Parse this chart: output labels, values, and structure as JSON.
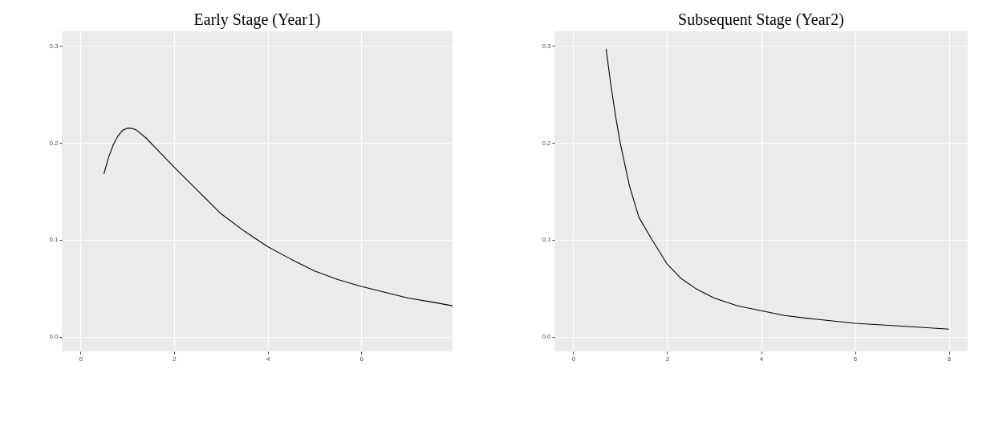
{
  "chart_data": [
    {
      "type": "line",
      "title": "Early Stage (Year1)",
      "color": "#000000",
      "grid": true,
      "xlim": [
        -0.4,
        7.95
      ],
      "xticks": [
        0,
        2,
        4,
        6
      ],
      "ylim": [
        -0.015,
        0.315
      ],
      "yticks": [
        {
          "value": 0,
          "label": "0.0"
        },
        0.1,
        0.2,
        0.3
      ],
      "x": [
        0.5,
        0.6,
        0.7,
        0.8,
        0.9,
        1.0,
        1.1,
        1.2,
        1.4,
        1.6,
        1.8,
        2.0,
        2.5,
        3.0,
        3.5,
        4.0,
        4.5,
        5.0,
        5.5,
        6.0,
        6.5,
        7.0,
        7.5,
        7.95
      ],
      "values": [
        0.168,
        0.185,
        0.198,
        0.207,
        0.213,
        0.215,
        0.215,
        0.213,
        0.205,
        0.195,
        0.185,
        0.175,
        0.151,
        0.127,
        0.109,
        0.093,
        0.08,
        0.068,
        0.059,
        0.052,
        0.046,
        0.04,
        0.036,
        0.032
      ]
    },
    {
      "type": "line",
      "title": "Subsequent Stage (Year2)",
      "color": "#000000",
      "grid": true,
      "xlim": [
        -0.4,
        8.4
      ],
      "xticks": [
        0,
        2,
        4,
        6,
        8
      ],
      "ylim": [
        -0.015,
        0.315
      ],
      "yticks": [
        {
          "value": 0,
          "label": "0.0"
        },
        0.1,
        0.2,
        0.3
      ],
      "x": [
        0.7,
        0.8,
        0.9,
        1.0,
        1.2,
        1.4,
        1.68,
        2.0,
        2.3,
        2.6,
        3.0,
        3.5,
        4.0,
        4.5,
        5.0,
        6.0,
        7.0,
        8.0
      ],
      "values": [
        0.297,
        0.26,
        0.228,
        0.2,
        0.155,
        0.123,
        0.1,
        0.075,
        0.06,
        0.05,
        0.04,
        0.032,
        0.027,
        0.022,
        0.019,
        0.014,
        0.011,
        0.008
      ]
    }
  ]
}
